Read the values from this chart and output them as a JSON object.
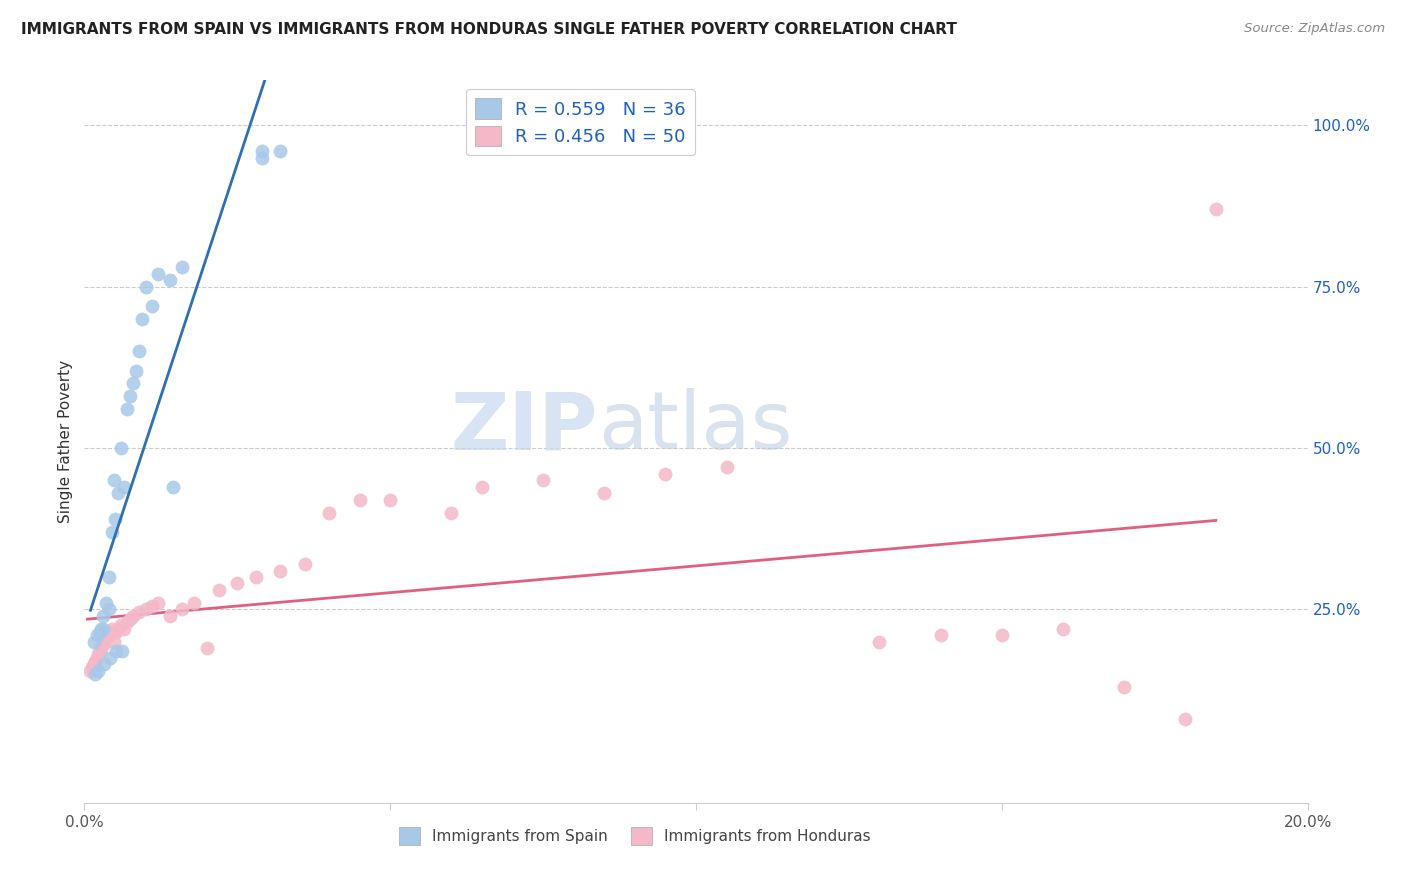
{
  "title": "IMMIGRANTS FROM SPAIN VS IMMIGRANTS FROM HONDURAS SINGLE FATHER POVERTY CORRELATION CHART",
  "source": "Source: ZipAtlas.com",
  "ylabel": "Single Father Poverty",
  "xlim": [
    0.0,
    0.2
  ],
  "ylim": [
    -0.05,
    1.07
  ],
  "blue_color": "#a8c8e8",
  "pink_color": "#f4b8c8",
  "blue_line_color": "#3070b0",
  "pink_line_color": "#e06080",
  "legend_text_color": "#2060c0",
  "watermark_zip": "ZIP",
  "watermark_atlas": "atlas",
  "spain_x": [
    0.0015,
    0.002,
    0.0025,
    0.0028,
    0.003,
    0.003,
    0.0035,
    0.004,
    0.004,
    0.0045,
    0.0048,
    0.005,
    0.0055,
    0.006,
    0.0065,
    0.007,
    0.0075,
    0.008,
    0.0085,
    0.009,
    0.0095,
    0.01,
    0.011,
    0.012,
    0.014,
    0.016,
    0.0018,
    0.0022,
    0.0032,
    0.0042,
    0.0052,
    0.0062,
    0.0145,
    0.029,
    0.029,
    0.032
  ],
  "spain_y": [
    0.2,
    0.21,
    0.215,
    0.22,
    0.22,
    0.24,
    0.26,
    0.25,
    0.3,
    0.37,
    0.45,
    0.39,
    0.43,
    0.5,
    0.44,
    0.56,
    0.58,
    0.6,
    0.62,
    0.65,
    0.7,
    0.75,
    0.72,
    0.77,
    0.76,
    0.78,
    0.15,
    0.155,
    0.165,
    0.175,
    0.185,
    0.185,
    0.44,
    0.95,
    0.96,
    0.96
  ],
  "honduras_x": [
    0.001,
    0.0012,
    0.0015,
    0.0018,
    0.002,
    0.0022,
    0.0025,
    0.0028,
    0.003,
    0.0032,
    0.0035,
    0.0038,
    0.004,
    0.0045,
    0.0048,
    0.0052,
    0.0055,
    0.006,
    0.0065,
    0.007,
    0.0075,
    0.008,
    0.009,
    0.01,
    0.011,
    0.012,
    0.014,
    0.016,
    0.018,
    0.02,
    0.022,
    0.025,
    0.028,
    0.032,
    0.036,
    0.04,
    0.045,
    0.05,
    0.06,
    0.065,
    0.075,
    0.085,
    0.095,
    0.105,
    0.13,
    0.14,
    0.15,
    0.16,
    0.17,
    0.18,
    0.185
  ],
  "honduras_y": [
    0.155,
    0.16,
    0.165,
    0.17,
    0.175,
    0.18,
    0.185,
    0.19,
    0.195,
    0.2,
    0.205,
    0.21,
    0.215,
    0.22,
    0.2,
    0.215,
    0.22,
    0.225,
    0.22,
    0.23,
    0.235,
    0.24,
    0.245,
    0.25,
    0.255,
    0.26,
    0.24,
    0.25,
    0.26,
    0.19,
    0.28,
    0.29,
    0.3,
    0.31,
    0.32,
    0.4,
    0.42,
    0.42,
    0.4,
    0.44,
    0.45,
    0.43,
    0.46,
    0.47,
    0.2,
    0.21,
    0.21,
    0.22,
    0.13,
    0.08,
    0.87
  ]
}
